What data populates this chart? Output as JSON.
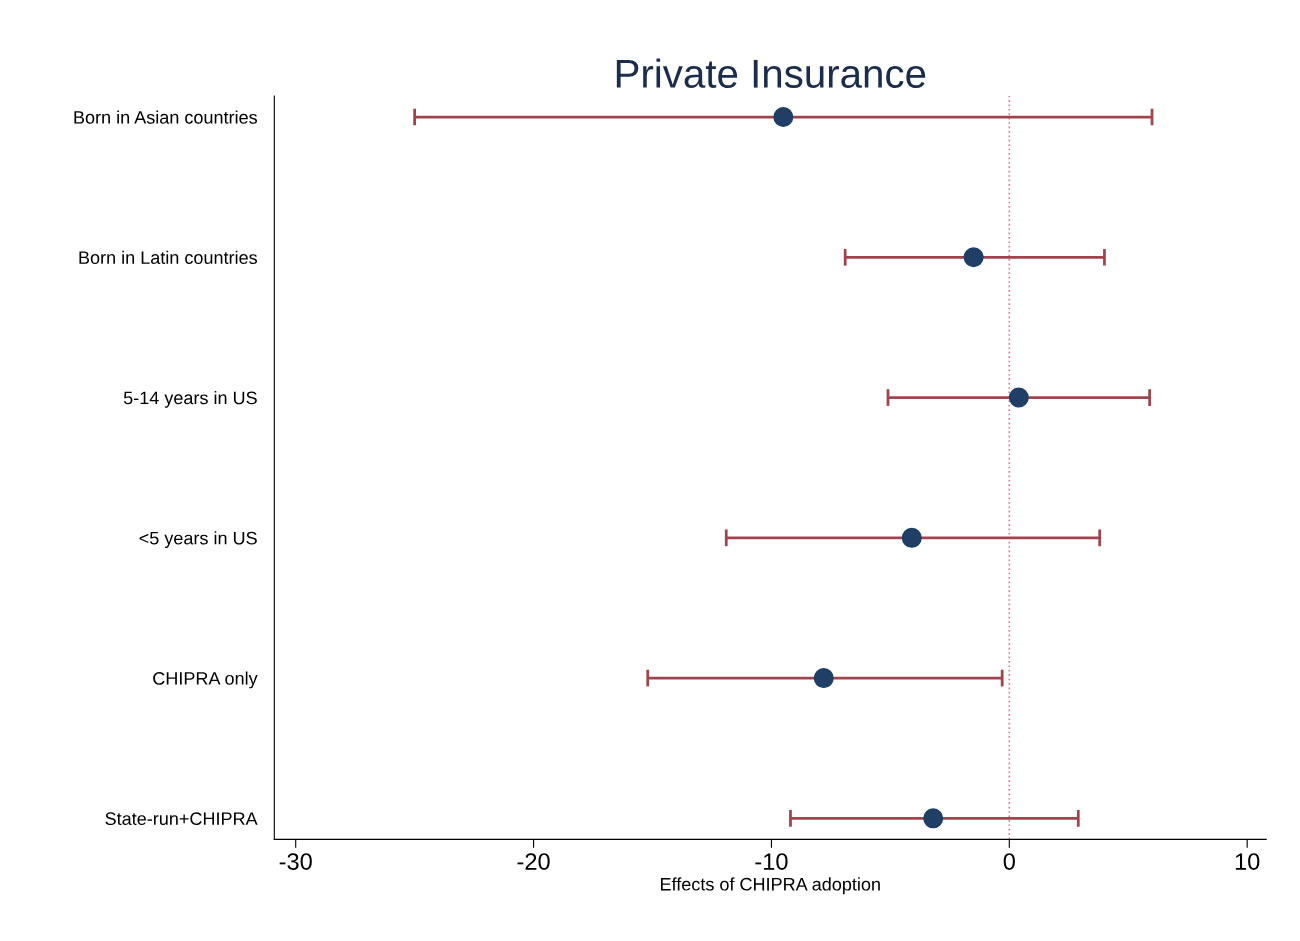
{
  "chart_data": {
    "type": "scatter",
    "orientation": "horizontal",
    "title": "Private Insurance",
    "xlabel": "Effects of CHIPRA adoption",
    "categories": [
      "Born in Asian countries",
      "Born in Latin countries",
      "5-14 years in US",
      "<5 years in US",
      "CHIPRA only",
      "State-run+CHIPRA"
    ],
    "series": [
      {
        "color": "#1f3f66",
        "values": [
          -9.5,
          -1.5,
          0.4,
          -4.1,
          -7.8,
          -3.2
        ],
        "errors": [
          [
            -25.0,
            6.0
          ],
          [
            -6.9,
            4.0
          ],
          [
            -5.1,
            5.9
          ],
          [
            -11.9,
            3.8
          ],
          [
            -15.2,
            -0.3
          ],
          [
            -9.2,
            2.9
          ]
        ]
      }
    ],
    "xlim": [
      -30.9,
      10.8
    ],
    "xticks": [
      -30,
      -20,
      -10,
      0,
      10
    ],
    "ref_lines": [
      {
        "axis": "x",
        "value": 0,
        "color": "#e07a9a",
        "line_style": "dotted"
      }
    ],
    "marker": "circle",
    "grid": false,
    "legend": false
  }
}
